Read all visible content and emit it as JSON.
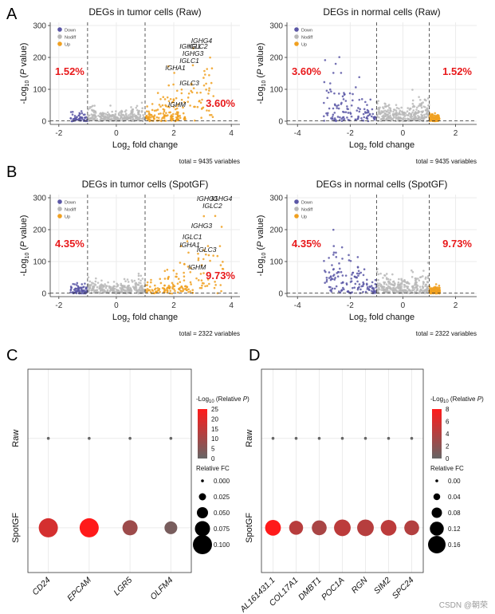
{
  "panel_letters": {
    "A": "A",
    "B": "B",
    "C": "C",
    "D": "D"
  },
  "legend": {
    "down": "Down",
    "nodiff": "Nodiff",
    "up": "Up"
  },
  "colors": {
    "down": "#5b57a6",
    "nodiff": "#b8b8b8",
    "up": "#f0a020",
    "pct": "#e8191b",
    "low": "#666666",
    "high": "#ff1a1a"
  },
  "dot_legend_title": "-Log10 (Relative P)",
  "size_legend_title": "Relative FC",
  "watermark": "CSDN @朝荣",
  "chart_data": [
    {
      "id": "A1",
      "type": "scatter",
      "title": "DEGs in tumor cells (Raw)",
      "xlabel": "Log2 fold change",
      "ylabel": "-Log10 (P value)",
      "xlim": [
        -2.3,
        4.3
      ],
      "ylim": [
        -10,
        310
      ],
      "xticks": [
        -2,
        0,
        2,
        4
      ],
      "yticks": [
        0,
        100,
        200,
        300
      ],
      "thresholds_x": [
        -1,
        1
      ],
      "threshold_y": 1.3,
      "pct_down": "1.52%",
      "pct_up": "3.60%",
      "total": "total = 9435 variables",
      "genes": [
        {
          "label": "IGHG4",
          "x": 2.6,
          "y": 245
        },
        {
          "label": "IGHG1",
          "x": 2.2,
          "y": 228
        },
        {
          "label": "IGLC2",
          "x": 2.5,
          "y": 228
        },
        {
          "label": "IGHG3",
          "x": 2.3,
          "y": 205
        },
        {
          "label": "IGLC1",
          "x": 2.2,
          "y": 182
        },
        {
          "label": "IGHA1",
          "x": 1.7,
          "y": 160
        },
        {
          "label": "IGLC3",
          "x": 2.2,
          "y": 112
        },
        {
          "label": "IGHM",
          "x": 1.8,
          "y": 45
        }
      ]
    },
    {
      "id": "A2",
      "type": "scatter",
      "title": "DEGs in normal cells (Raw)",
      "xlabel": "Log2 fold change",
      "ylabel": "-Log10 (P value)",
      "xlim": [
        -4.4,
        2.8
      ],
      "ylim": [
        -10,
        310
      ],
      "xticks": [
        -4,
        -2,
        0,
        2
      ],
      "yticks": [
        0,
        100,
        200,
        300
      ],
      "thresholds_x": [
        -1,
        1
      ],
      "threshold_y": 1.3,
      "pct_down": "3.60%",
      "pct_up": "1.52%",
      "total": "total = 9435 variables",
      "genes": []
    },
    {
      "id": "B1",
      "type": "scatter",
      "title": "DEGs in tumor cells (SpotGF)",
      "xlabel": "Log2 fold change",
      "ylabel": "-Log10 (P value)",
      "xlim": [
        -2.3,
        4.3
      ],
      "ylim": [
        -10,
        310
      ],
      "xticks": [
        -2,
        0,
        2,
        4
      ],
      "yticks": [
        0,
        100,
        200,
        300
      ],
      "thresholds_x": [
        -1,
        1
      ],
      "threshold_y": 1.3,
      "pct_down": "4.35%",
      "pct_up": "9.73%",
      "total": "total = 2322 variables",
      "genes": [
        {
          "label": "IGHG1",
          "x": 2.8,
          "y": 290
        },
        {
          "label": "IGHG4",
          "x": 3.3,
          "y": 290
        },
        {
          "label": "IGLC2",
          "x": 3.0,
          "y": 268
        },
        {
          "label": "IGHG3",
          "x": 2.6,
          "y": 205
        },
        {
          "label": "IGLC1",
          "x": 2.3,
          "y": 170
        },
        {
          "label": "IGHA1",
          "x": 2.2,
          "y": 145
        },
        {
          "label": "IGLC3",
          "x": 2.8,
          "y": 130
        },
        {
          "label": "IGHM",
          "x": 2.5,
          "y": 75
        }
      ]
    },
    {
      "id": "B2",
      "type": "scatter",
      "title": "DEGs in normal cells (SpotGF)",
      "xlabel": "Log2 fold change",
      "ylabel": "-Log10 (P value)",
      "xlim": [
        -4.4,
        2.8
      ],
      "ylim": [
        -10,
        310
      ],
      "xticks": [
        -4,
        -2,
        0,
        2
      ],
      "yticks": [
        0,
        100,
        200,
        300
      ],
      "thresholds_x": [
        -1,
        1
      ],
      "threshold_y": 1.3,
      "pct_down": "4.35%",
      "pct_up": "9.73%",
      "total": "total = 2322 variables",
      "genes": []
    },
    {
      "id": "C",
      "type": "dot",
      "categories": [
        "CD24",
        "EPCAM",
        "LGR5",
        "OLFM4"
      ],
      "rows": [
        "Raw",
        "SpotGF"
      ],
      "spotgf_neglogp": [
        18,
        25,
        9,
        3
      ],
      "spotgf_fc": [
        0.1,
        0.1,
        0.075,
        0.06
      ],
      "raw_neglogp": [
        0,
        0,
        0,
        0
      ],
      "raw_fc": [
        0,
        0,
        0,
        0
      ],
      "color_ticks": [
        25,
        20,
        15,
        10,
        5,
        0
      ],
      "color_range": [
        0,
        25
      ],
      "size_ticks": [
        "0.000",
        "0.025",
        "0.050",
        "0.075",
        "0.100"
      ],
      "size_range": [
        0,
        0.1
      ]
    },
    {
      "id": "D",
      "type": "dot",
      "categories": [
        "AL161431.1",
        "COL17A1",
        "DMBT1",
        "POC1A",
        "RGN",
        "SIM2",
        "SPC24"
      ],
      "rows": [
        "Raw",
        "SpotGF"
      ],
      "spotgf_neglogp": [
        8,
        4.3,
        3.5,
        4.5,
        4.2,
        4.5,
        4.0
      ],
      "spotgf_fc": [
        0.14,
        0.12,
        0.13,
        0.15,
        0.15,
        0.14,
        0.13
      ],
      "raw_neglogp": [
        0,
        0,
        0,
        0,
        0,
        0,
        0
      ],
      "raw_fc": [
        0,
        0,
        0,
        0,
        0,
        0,
        0
      ],
      "color_ticks": [
        8,
        6,
        4,
        2,
        0
      ],
      "color_range": [
        0,
        8
      ],
      "size_ticks": [
        "0.00",
        "0.04",
        "0.08",
        "0.12",
        "0.16"
      ],
      "size_range": [
        0,
        0.16
      ]
    }
  ]
}
